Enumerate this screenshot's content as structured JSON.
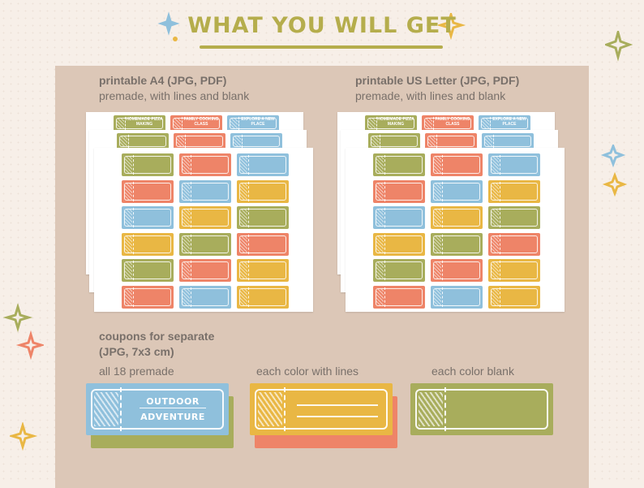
{
  "title": "WHAT YOU WILL GET",
  "colors": {
    "background": "#f7efe8",
    "panel": "#dcc7b7",
    "title": "#b5ad4c",
    "label_text": "#79706a",
    "olive": "#a8ad5c",
    "coral": "#ee8468",
    "blue": "#8fc0dc",
    "yellow": "#e9b744"
  },
  "a4": {
    "label_line1": "printable A4 (JPG, PDF)",
    "label_line2": "premade, with lines and blank",
    "header_tickets": [
      "HOMEMADE PIZZA MAKING",
      "FAMILY COOKING CLASS",
      "EXPLORE A NEW PLACE"
    ]
  },
  "us_letter": {
    "label_line1": "printable US Letter (JPG, PDF)",
    "label_line2": "premade, with lines and blank",
    "header_tickets": [
      "HOMEMADE PIZZA MAKING",
      "FAMILY COOKING CLASS",
      "EXPLORE A NEW PLACE"
    ]
  },
  "separate": {
    "label_line1": "coupons for separate",
    "label_line2": "(JPG, 7x3 cm)",
    "options": [
      {
        "label": "all 18 premade",
        "ticket_text": [
          "OUTDOOR",
          "ADVENTURE"
        ]
      },
      {
        "label": "each color with lines"
      },
      {
        "label": "each color blank"
      }
    ]
  },
  "icons": [
    "sparkle-icon"
  ]
}
